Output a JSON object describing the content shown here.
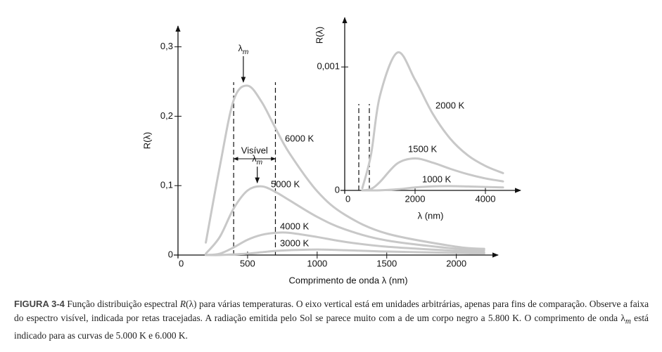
{
  "chart_data": [
    {
      "type": "line",
      "ylabel": "R(λ)",
      "xlabel": "Comprimento de onda λ (nm)",
      "x": [
        200,
        300,
        400,
        500,
        600,
        700,
        800,
        1000,
        1200,
        1500,
        2000,
        2200
      ],
      "series": [
        {
          "name": "6000 K",
          "color": "#c8c8c8",
          "values": [
            0.018,
            0.127,
            0.223,
            0.244,
            0.221,
            0.183,
            0.147,
            0.092,
            0.058,
            0.031,
            0.012,
            0.009
          ]
        },
        {
          "name": "5000 K",
          "color": "#c8c8c8",
          "values": [
            0.002,
            0.026,
            0.067,
            0.093,
            0.099,
            0.091,
            0.079,
            0.055,
            0.037,
            0.021,
            0.009,
            0.007
          ]
        },
        {
          "name": "4000 K",
          "color": "#c8c8c8",
          "values": [
            0,
            0.002,
            0.011,
            0.022,
            0.029,
            0.032,
            0.032,
            0.026,
            0.019,
            0.012,
            0.006,
            0.004
          ]
        },
        {
          "name": "3000 K",
          "color": "#c8c8c8",
          "values": [
            0,
            0,
            0.001,
            0.002,
            0.004,
            0.006,
            0.007,
            0.008,
            0.007,
            0.005,
            0.003,
            0.002
          ]
        }
      ],
      "xlim": [
        0,
        2300
      ],
      "xticks": [
        0,
        500,
        1000,
        1500,
        2000
      ],
      "ylim": [
        0,
        0.33
      ],
      "yticks": [
        0,
        {
          "value": 0.1,
          "label": "0,1"
        },
        {
          "value": 0.2,
          "label": "0,2"
        },
        {
          "value": 0.3,
          "label": "0,3"
        }
      ],
      "annotations": [
        {
          "text": "λ",
          "sub": "m"
        },
        {
          "text": "λ",
          "sub": "m"
        }
      ],
      "visible_band": {
        "label": "Visível",
        "x": [
          400,
          700
        ]
      }
    },
    {
      "type": "line",
      "ylabel": "R(λ)",
      "xlabel": "λ (nm)",
      "x": [
        500,
        750,
        1000,
        1500,
        2000,
        2500,
        3000,
        3500,
        4000,
        4500
      ],
      "series": [
        {
          "name": "2000 K",
          "color": "#c8c8c8",
          "values": [
            1.8e-05,
            0.000293,
            0.000765,
            0.001117,
            0.000896,
            0.000622,
            0.000419,
            0.000284,
            0.000198,
            0.00014
          ]
        },
        {
          "name": "1500 K",
          "color": "#c8c8c8",
          "values": [
            0,
            1.2e-05,
            6.8e-05,
            0.000219,
            0.000259,
            0.000225,
            0.000175,
            0.000131,
            9.7e-05,
            7.3e-05
          ]
        },
        {
          "name": "1000 K",
          "color": "#c8c8c8",
          "values": [
            0,
            0,
            1e-06,
            9e-06,
            2.4e-05,
            3.3e-05,
            3.5e-05,
            3.2e-05,
            2.8e-05,
            2.4e-05
          ]
        }
      ],
      "xlim": [
        0,
        5000
      ],
      "xticks": [
        0,
        2000,
        4000
      ],
      "ylim": [
        0,
        0.0014
      ],
      "yticks": [
        0,
        {
          "value": 0.001,
          "label": "0,001"
        }
      ],
      "vlines": [
        400,
        700
      ]
    }
  ],
  "caption": {
    "label": "FIGURA 3-4",
    "parts": [
      "Função distribuição espectral ",
      "R",
      "(λ) para várias temperaturas. O eixo vertical está em unidades arbitrárias, apenas para fins de comparação. Observe a faixa do espectro visível, indicada por retas tracejadas. A radiação emitida pelo Sol se parece muito com a de um corpo negro a 5.800 K. O comprimento de onda λ",
      "m",
      " está indicado para as curvas de 5.000 K e 6.000 K."
    ]
  }
}
